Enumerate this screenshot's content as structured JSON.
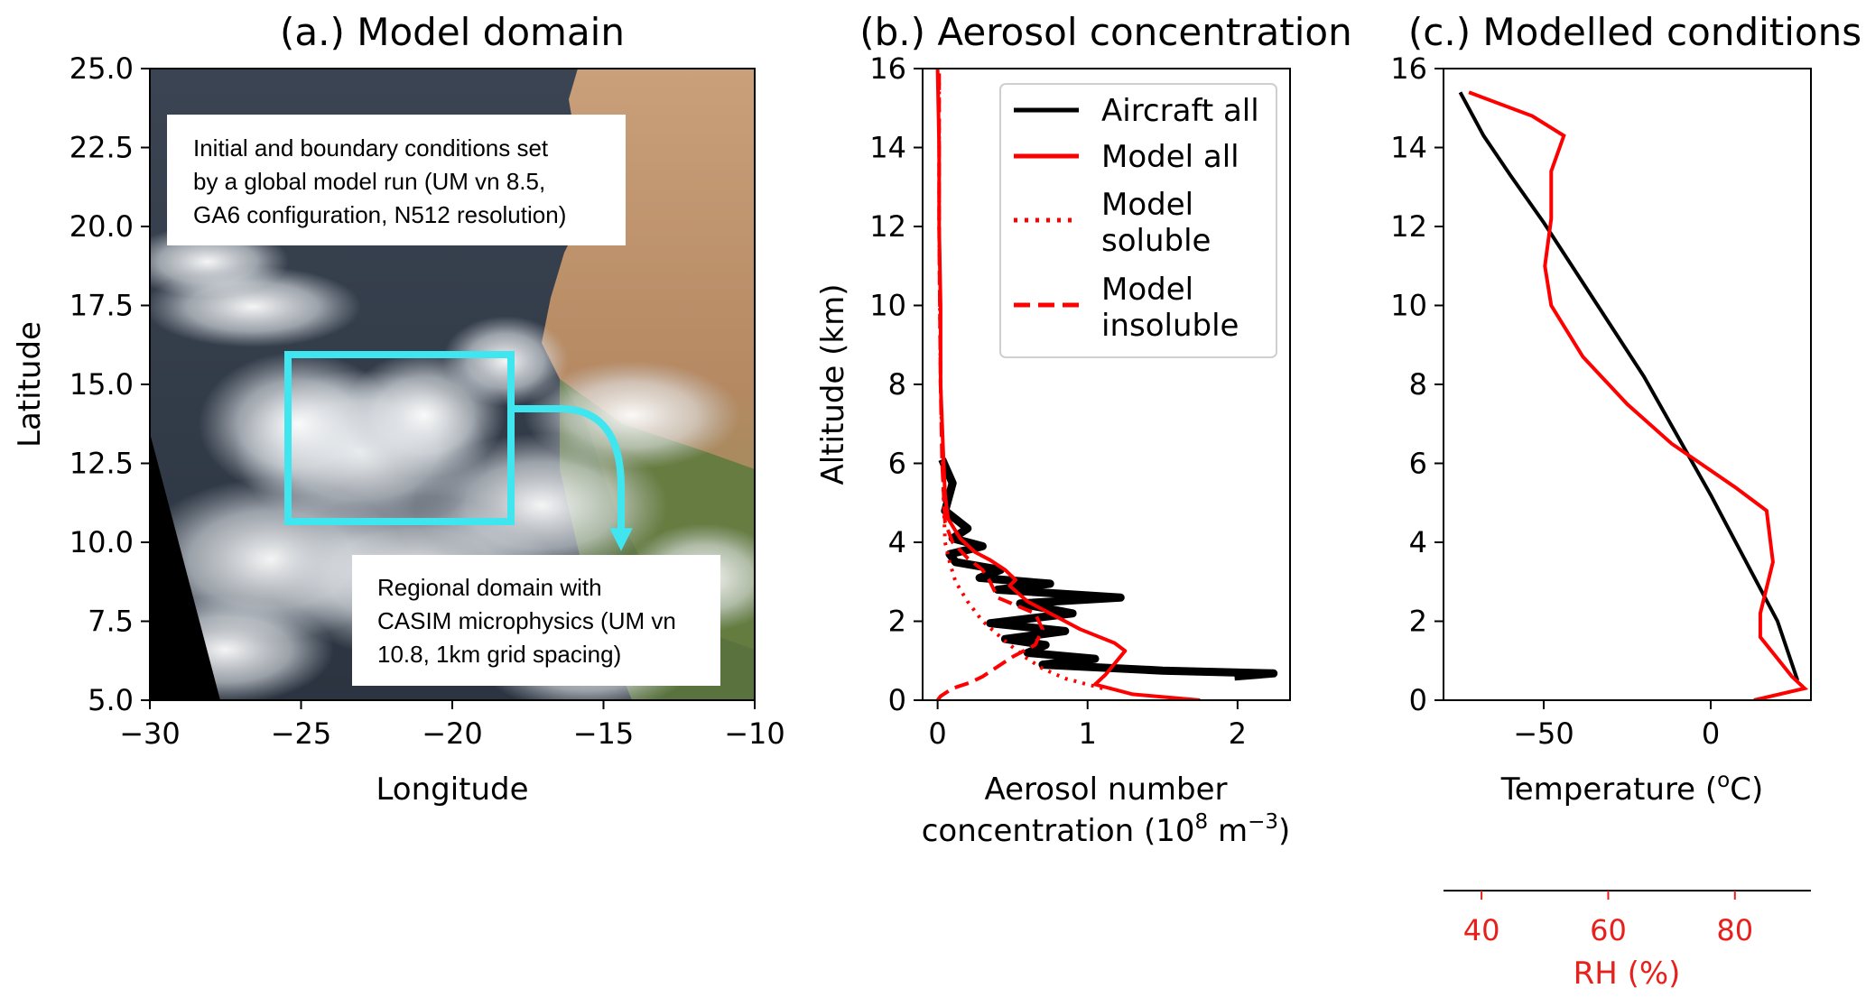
{
  "colors": {
    "aircraft": "#000000",
    "model": "#ff0000",
    "rh_axis": "#e8201c",
    "domain_box": "#3fe6f0"
  },
  "panel_a": {
    "title": "(a.) Model domain",
    "xlabel": "Longitude",
    "ylabel": "Latitude",
    "xticks": [
      "−30",
      "−25",
      "−20",
      "−15",
      "−10"
    ],
    "yticks": [
      "5.0",
      "7.5",
      "10.0",
      "12.5",
      "15.0",
      "17.5",
      "20.0",
      "22.5",
      "25.0"
    ],
    "annotation_global": [
      "Initial and boundary conditions set",
      "by a global model run (UM vn 8.5,",
      "GA6 configuration, N512 resolution)"
    ],
    "annotation_regional": [
      "Regional domain with",
      "CASIM microphysics (UM vn",
      "10.8, 1km grid spacing)"
    ],
    "background": "satellite image"
  },
  "panel_b": {
    "title": "(b.) Aerosol concentration",
    "xlabel_line1": "Aerosol number",
    "xlabel_line2_prefix": "concentration (10",
    "xlabel_exp1": "8",
    "xlabel_mid": "  m",
    "xlabel_exp2": "−3",
    "xlabel_suffix": ")",
    "ylabel": "Altitude (km)",
    "xticks": [
      "0",
      "1",
      "2"
    ],
    "yticks": [
      "0",
      "2",
      "4",
      "6",
      "8",
      "10",
      "12",
      "14",
      "16"
    ],
    "legend": [
      {
        "label": [
          "Aircraft all"
        ],
        "style": "solid-black"
      },
      {
        "label": [
          "Model all"
        ],
        "style": "solid-red"
      },
      {
        "label": [
          "Model",
          "soluble"
        ],
        "style": "dotted-red"
      },
      {
        "label": [
          "Model",
          "insoluble"
        ],
        "style": "dashed-red"
      }
    ]
  },
  "panel_c": {
    "title": "(c.) Modelled conditions",
    "xlabel_prefix": "Temperature  (",
    "xlabel_deg": "o",
    "xlabel_suffix": "C)",
    "xticks": [
      "−50",
      "0"
    ],
    "yticks": [
      "0",
      "2",
      "4",
      "6",
      "8",
      "10",
      "12",
      "14",
      "16"
    ],
    "rh_label": "RH (%)",
    "rh_ticks": [
      "40",
      "60",
      "80"
    ]
  },
  "chart_data": [
    {
      "type": "image",
      "panel": "a",
      "title": "(a.) Model domain",
      "xlabel": "Longitude",
      "ylabel": "Latitude",
      "xlim": [
        -30,
        -10
      ],
      "ylim": [
        5,
        25
      ],
      "regional_domain_box": {
        "lon": [
          -25.5,
          -18.2
        ],
        "lat": [
          10.7,
          15.9
        ]
      }
    },
    {
      "type": "line",
      "panel": "b",
      "title": "(b.) Aerosol concentration",
      "xlabel": "Aerosol number concentration (10^8 m^-3)",
      "ylabel": "Altitude (km)",
      "xlim": [
        -0.1,
        2.35
      ],
      "ylim": [
        0,
        16
      ],
      "series": [
        {
          "name": "Aircraft all",
          "x": [
            1.98,
            2.24,
            1.5,
            0.7,
            1.05,
            0.6,
            0.72,
            0.45,
            0.85,
            0.35,
            0.9,
            0.55,
            1.22,
            0.4,
            0.75,
            0.28,
            0.42,
            0.12,
            0.08,
            0.3,
            0.1,
            0.2,
            0.05,
            0.1,
            0.03
          ],
          "y": [
            0.6,
            0.68,
            0.75,
            0.9,
            1.05,
            1.2,
            1.4,
            1.55,
            1.75,
            1.95,
            2.2,
            2.45,
            2.6,
            2.8,
            2.95,
            3.1,
            3.3,
            3.5,
            3.7,
            3.9,
            4.1,
            4.35,
            4.8,
            5.5,
            6.1
          ]
        },
        {
          "name": "Model all",
          "x": [
            1.75,
            1.3,
            1.05,
            1.12,
            1.25,
            1.18,
            0.95,
            0.8,
            0.6,
            0.48,
            0.52,
            0.45,
            0.35,
            0.25,
            0.15,
            0.07,
            0.05,
            0.04,
            0.03,
            0.02,
            0.02,
            0.01,
            0.01,
            0.0
          ],
          "y": [
            0,
            0.15,
            0.4,
            0.65,
            1.25,
            1.45,
            1.8,
            2.1,
            2.5,
            2.9,
            3.05,
            3.3,
            3.55,
            3.75,
            4.1,
            4.6,
            5.2,
            6.0,
            7.0,
            8.0,
            10.0,
            12.0,
            14.0,
            16.0
          ]
        },
        {
          "name": "Model soluble",
          "x": [
            1.1,
            0.85,
            0.7,
            0.58,
            0.45,
            0.3,
            0.2,
            0.12,
            0.08,
            0.05,
            0.04,
            0.02,
            0.01,
            0.01
          ],
          "y": [
            0.3,
            0.55,
            0.8,
            1.1,
            1.5,
            2.0,
            2.5,
            3.0,
            3.5,
            4.0,
            5.0,
            8.0,
            12.0,
            16.0
          ]
        },
        {
          "name": "Model insoluble",
          "x": [
            0.0,
            0.02,
            0.1,
            0.22,
            0.3,
            0.4,
            0.5,
            0.65,
            0.7,
            0.65,
            0.4,
            0.35,
            0.3,
            0.2,
            0.1,
            0.05,
            0.03,
            0.02,
            0.01,
            0.01
          ],
          "y": [
            0,
            0.1,
            0.3,
            0.45,
            0.6,
            0.85,
            1.1,
            1.4,
            1.8,
            2.2,
            2.6,
            3.0,
            3.3,
            3.6,
            4.0,
            4.5,
            6.0,
            8.0,
            12.0,
            16.0
          ]
        }
      ]
    },
    {
      "type": "line",
      "panel": "c",
      "title": "(c.) Modelled conditions",
      "xlabel": "Temperature (oC)",
      "secondary_xlabel": "RH (%)",
      "xlim": [
        -80,
        30
      ],
      "ylim": [
        0,
        16
      ],
      "rh_xlim": [
        34,
        92
      ],
      "series": [
        {
          "name": "Temperature",
          "axis": "Temperature (oC)",
          "x": [
            26,
            20,
            10,
            0,
            -10,
            -20,
            -30,
            -40,
            -50,
            -60,
            -68,
            -75
          ],
          "y": [
            0.5,
            2.0,
            3.6,
            5.2,
            6.7,
            8.2,
            9.5,
            10.8,
            12.1,
            13.3,
            14.3,
            15.4
          ]
        },
        {
          "name": "RH",
          "axis": "RH (%)",
          "x": [
            83,
            91,
            89,
            84,
            84,
            86,
            85,
            80,
            70,
            63,
            56,
            51,
            50,
            51,
            51,
            53,
            48,
            38
          ],
          "y": [
            0,
            0.3,
            0.6,
            1.6,
            2.2,
            3.5,
            4.8,
            5.4,
            6.5,
            7.5,
            8.7,
            10.0,
            11.0,
            12.2,
            13.4,
            14.3,
            14.8,
            15.4
          ]
        }
      ]
    }
  ]
}
